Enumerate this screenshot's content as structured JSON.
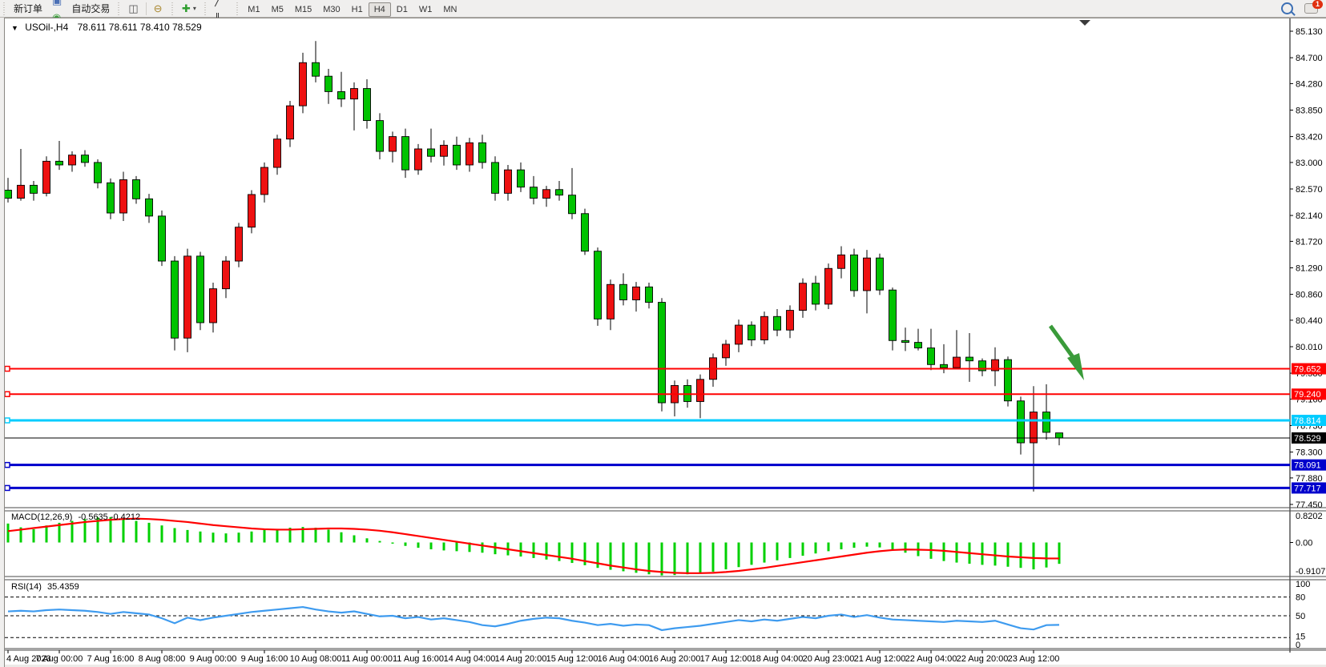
{
  "toolbar": {
    "new_order_label": "新订单",
    "autotrade_label": "自动交易",
    "icons_left": [
      {
        "name": "chart-window-icon",
        "glyph": "◆",
        "color": "#d8a31e"
      },
      {
        "name": "terminal-icon",
        "glyph": "▣",
        "color": "#4a6fb5"
      },
      {
        "name": "signals-icon",
        "glyph": "◉",
        "color": "#3f9e3f"
      },
      {
        "name": "autotrade-icon",
        "glyph": "▶",
        "color": "#cc2020"
      }
    ],
    "icons_charttype": [
      {
        "name": "bar-chart-icon",
        "glyph": "▥",
        "color": "#555"
      },
      {
        "name": "candlestick-chart-icon",
        "glyph": "◫",
        "color": "#555"
      },
      {
        "name": "line-chart-icon",
        "glyph": "∿",
        "color": "#555"
      }
    ],
    "icons_zoom": [
      {
        "name": "zoom-in-icon",
        "glyph": "⊕",
        "color": "#a8862c"
      },
      {
        "name": "zoom-out-icon",
        "glyph": "⊖",
        "color": "#a8862c"
      },
      {
        "name": "tile-windows-icon",
        "glyph": "▦",
        "color": "#3f7fbf"
      }
    ],
    "icons_profile": [
      {
        "name": "auto-arrange-icon",
        "glyph": "▤",
        "color": "#3f9e3f"
      },
      {
        "name": "chart-shift-icon",
        "glyph": "▥",
        "color": "#3f9e3f"
      },
      {
        "name": "add-indicator-icon",
        "glyph": "✚",
        "color": "#2f9e2f",
        "dropdown": true
      },
      {
        "name": "period-icon",
        "glyph": "◷",
        "color": "#4a6fb5",
        "dropdown": true
      },
      {
        "name": "template-icon",
        "glyph": "▩",
        "color": "#6b6b6b"
      }
    ],
    "icons_draw": [
      {
        "name": "cursor-icon",
        "glyph": "↖",
        "color": "#333"
      },
      {
        "name": "crosshair-icon",
        "glyph": "＋",
        "color": "#333"
      },
      {
        "name": "vertical-line-icon",
        "glyph": "│",
        "color": "#333"
      },
      {
        "name": "horizontal-line-icon",
        "glyph": "─",
        "color": "#333"
      },
      {
        "name": "trendline-icon",
        "glyph": "╱",
        "color": "#333"
      },
      {
        "name": "equidistant-channel-icon",
        "glyph": "∥",
        "color": "#333"
      },
      {
        "name": "fibonacci-icon",
        "glyph": "F",
        "color": "#333"
      },
      {
        "name": "text-icon",
        "glyph": "A",
        "color": "#333"
      },
      {
        "name": "text-label-icon",
        "glyph": "T",
        "color": "#333"
      },
      {
        "name": "shapes-icon",
        "glyph": "◆",
        "color": "#555",
        "dropdown": true
      }
    ],
    "timeframes": [
      "M1",
      "M5",
      "M15",
      "M30",
      "H1",
      "H4",
      "D1",
      "W1",
      "MN"
    ],
    "active_timeframe": "H4",
    "notification_count": "1"
  },
  "window": {
    "title_arrow": "▼",
    "symbol_title": "USOil-,H4",
    "ohlc_text": "78.611 78.611 78.410 78.529"
  },
  "chart_data": {
    "type": "candlestick",
    "symbol": "USOil-",
    "timeframe": "H4",
    "title": "USOil-,H4",
    "current_bar_ohlc": "78.611 78.611 78.410 78.529",
    "up_color": "#ee1111",
    "down_color": "#00c300",
    "candle_border": "#000000",
    "y_axis": {
      "min": 77.45,
      "max": 85.13,
      "ticks": [
        85.13,
        84.7,
        84.28,
        83.85,
        83.42,
        83.0,
        82.57,
        82.14,
        81.72,
        81.29,
        80.86,
        80.44,
        80.01,
        79.58,
        79.16,
        78.73,
        78.3,
        77.88,
        77.45
      ]
    },
    "x_labels": [
      "4 Aug 2023",
      "7 Aug 00:00",
      "7 Aug 16:00",
      "8 Aug 08:00",
      "9 Aug 00:00",
      "9 Aug 16:00",
      "10 Aug 08:00",
      "11 Aug 00:00",
      "11 Aug 16:00",
      "14 Aug 04:00",
      "14 Aug 20:00",
      "15 Aug 12:00",
      "16 Aug 04:00",
      "16 Aug 20:00",
      "17 Aug 12:00",
      "18 Aug 04:00",
      "20 Aug 23:00",
      "21 Aug 12:00",
      "22 Aug 04:00",
      "22 Aug 20:00",
      "23 Aug 12:00"
    ],
    "bars_per_label": 4,
    "candles": [
      [
        82.55,
        82.75,
        82.35,
        82.42
      ],
      [
        82.42,
        83.22,
        82.38,
        82.63
      ],
      [
        82.63,
        82.7,
        82.38,
        82.5
      ],
      [
        82.5,
        83.1,
        82.45,
        83.02
      ],
      [
        83.02,
        83.35,
        82.88,
        82.96
      ],
      [
        82.96,
        83.18,
        82.85,
        83.12
      ],
      [
        83.12,
        83.2,
        82.93,
        83.0
      ],
      [
        83.0,
        83.05,
        82.58,
        82.67
      ],
      [
        82.67,
        82.74,
        82.08,
        82.18
      ],
      [
        82.18,
        82.85,
        82.05,
        82.72
      ],
      [
        82.72,
        82.78,
        82.33,
        82.41
      ],
      [
        82.41,
        82.49,
        82.02,
        82.13
      ],
      [
        82.13,
        82.22,
        81.32,
        81.4
      ],
      [
        81.4,
        81.48,
        79.95,
        80.15
      ],
      [
        80.15,
        81.6,
        79.92,
        81.48
      ],
      [
        81.48,
        81.55,
        80.28,
        80.4
      ],
      [
        80.4,
        81.05,
        80.24,
        80.95
      ],
      [
        80.95,
        81.48,
        80.8,
        81.4
      ],
      [
        81.4,
        82.02,
        81.3,
        81.95
      ],
      [
        81.95,
        82.55,
        81.85,
        82.48
      ],
      [
        82.48,
        83.0,
        82.35,
        82.92
      ],
      [
        82.92,
        83.45,
        82.8,
        83.38
      ],
      [
        83.38,
        84.0,
        83.25,
        83.92
      ],
      [
        83.92,
        84.78,
        83.8,
        84.62
      ],
      [
        84.62,
        84.97,
        84.3,
        84.4
      ],
      [
        84.4,
        84.52,
        83.95,
        84.15
      ],
      [
        84.15,
        84.47,
        83.9,
        84.03
      ],
      [
        84.03,
        84.3,
        83.52,
        84.2
      ],
      [
        84.2,
        84.35,
        83.55,
        83.68
      ],
      [
        83.68,
        83.8,
        83.05,
        83.18
      ],
      [
        83.18,
        83.5,
        83.0,
        83.42
      ],
      [
        83.42,
        83.55,
        82.75,
        82.88
      ],
      [
        82.88,
        83.3,
        82.8,
        83.22
      ],
      [
        83.22,
        83.55,
        83.0,
        83.1
      ],
      [
        83.1,
        83.36,
        82.95,
        83.28
      ],
      [
        83.28,
        83.42,
        82.88,
        82.96
      ],
      [
        82.96,
        83.4,
        82.85,
        83.32
      ],
      [
        83.32,
        83.45,
        82.9,
        83.0
      ],
      [
        83.0,
        83.1,
        82.38,
        82.5
      ],
      [
        82.5,
        82.96,
        82.38,
        82.88
      ],
      [
        82.88,
        83.0,
        82.52,
        82.6
      ],
      [
        82.6,
        82.78,
        82.32,
        82.42
      ],
      [
        82.42,
        82.62,
        82.28,
        82.56
      ],
      [
        82.56,
        82.7,
        82.38,
        82.47
      ],
      [
        82.47,
        82.91,
        82.08,
        82.17
      ],
      [
        82.17,
        82.25,
        81.5,
        81.56
      ],
      [
        81.56,
        81.62,
        80.35,
        80.46
      ],
      [
        80.46,
        81.1,
        80.28,
        81.02
      ],
      [
        81.02,
        81.2,
        80.68,
        80.77
      ],
      [
        80.77,
        81.06,
        80.58,
        80.98
      ],
      [
        80.98,
        81.05,
        80.63,
        80.73
      ],
      [
        80.73,
        80.8,
        78.96,
        79.1
      ],
      [
        79.1,
        79.46,
        78.88,
        79.38
      ],
      [
        79.38,
        79.48,
        79.02,
        79.12
      ],
      [
        79.12,
        79.56,
        78.85,
        79.48
      ],
      [
        79.48,
        79.9,
        79.36,
        79.83
      ],
      [
        79.83,
        80.12,
        79.7,
        80.05
      ],
      [
        80.05,
        80.45,
        79.92,
        80.36
      ],
      [
        80.36,
        80.42,
        80.02,
        80.12
      ],
      [
        80.12,
        80.58,
        80.05,
        80.5
      ],
      [
        80.5,
        80.62,
        80.18,
        80.28
      ],
      [
        80.28,
        80.68,
        80.15,
        80.6
      ],
      [
        80.6,
        81.12,
        80.48,
        81.04
      ],
      [
        81.04,
        81.16,
        80.6,
        80.7
      ],
      [
        80.7,
        81.36,
        80.62,
        81.28
      ],
      [
        81.28,
        81.64,
        81.12,
        81.5
      ],
      [
        81.5,
        81.6,
        80.82,
        80.92
      ],
      [
        80.92,
        81.58,
        80.55,
        81.45
      ],
      [
        81.45,
        81.52,
        80.85,
        80.93
      ],
      [
        80.93,
        80.97,
        79.95,
        80.11
      ],
      [
        80.11,
        80.32,
        79.94,
        80.08
      ],
      [
        80.08,
        80.3,
        79.95,
        79.99
      ],
      [
        79.99,
        80.3,
        79.63,
        79.72
      ],
      [
        79.72,
        80.05,
        79.58,
        79.67
      ],
      [
        79.67,
        80.28,
        79.64,
        79.84
      ],
      [
        79.84,
        80.23,
        79.44,
        79.78
      ],
      [
        79.78,
        79.82,
        79.53,
        79.62
      ],
      [
        79.62,
        80.0,
        79.37,
        79.8
      ],
      [
        79.8,
        79.85,
        79.04,
        79.13
      ],
      [
        79.13,
        79.2,
        78.26,
        78.45
      ],
      [
        78.45,
        79.37,
        77.66,
        78.95
      ],
      [
        78.95,
        79.4,
        78.5,
        78.62
      ],
      [
        78.611,
        78.611,
        78.41,
        78.529
      ]
    ],
    "hlines": [
      {
        "price": 79.652,
        "label": "79.652",
        "color": "#ff0000",
        "width": 2
      },
      {
        "price": 79.24,
        "label": "79.240",
        "color": "#ff0000",
        "width": 2
      },
      {
        "price": 78.814,
        "label": "78.814",
        "color": "#00ccff",
        "width": 3
      },
      {
        "price": 78.529,
        "label": "78.529",
        "color": "#000000",
        "width": 1,
        "role": "bid"
      },
      {
        "price": 78.091,
        "label": "78.091",
        "color": "#0000cc",
        "width": 3
      },
      {
        "price": 77.717,
        "label": "77.717",
        "color": "#0000cc",
        "width": 3
      }
    ],
    "annotation_arrow": {
      "color": "#3a9b3a"
    },
    "indicators": {
      "macd": {
        "label": "MACD(12,26,9)",
        "value_text": "-0.5635 -0.4212",
        "scale": {
          "top": "0.8202",
          "zero": "0.00",
          "bottom": "-0.9107"
        },
        "histogram_color": "#00d000",
        "signal_color": "#ff0000",
        "histogram": [
          0.5,
          0.4,
          0.35,
          0.45,
          0.52,
          0.57,
          0.62,
          0.66,
          0.67,
          0.63,
          0.57,
          0.52,
          0.45,
          0.38,
          0.33,
          0.29,
          0.26,
          0.24,
          0.26,
          0.29,
          0.33,
          0.36,
          0.39,
          0.41,
          0.39,
          0.34,
          0.27,
          0.19,
          0.11,
          0.04,
          -0.03,
          -0.09,
          -0.14,
          -0.18,
          -0.21,
          -0.23,
          -0.25,
          -0.27,
          -0.31,
          -0.34,
          -0.37,
          -0.41,
          -0.45,
          -0.49,
          -0.54,
          -0.6,
          -0.67,
          -0.72,
          -0.76,
          -0.8,
          -0.84,
          -0.87,
          -0.86,
          -0.84,
          -0.81,
          -0.77,
          -0.71,
          -0.65,
          -0.59,
          -0.53,
          -0.47,
          -0.41,
          -0.35,
          -0.29,
          -0.23,
          -0.18,
          -0.14,
          -0.11,
          -0.13,
          -0.19,
          -0.27,
          -0.36,
          -0.43,
          -0.49,
          -0.53,
          -0.56,
          -0.59,
          -0.61,
          -0.64,
          -0.67,
          -0.71,
          -0.66,
          -0.5635
        ],
        "signal": [
          0.3,
          0.34,
          0.38,
          0.42,
          0.46,
          0.5,
          0.54,
          0.57,
          0.6,
          0.62,
          0.63,
          0.62,
          0.6,
          0.57,
          0.54,
          0.5,
          0.46,
          0.43,
          0.4,
          0.37,
          0.35,
          0.34,
          0.34,
          0.35,
          0.36,
          0.37,
          0.37,
          0.36,
          0.34,
          0.31,
          0.27,
          0.22,
          0.17,
          0.12,
          0.07,
          0.02,
          -0.03,
          -0.08,
          -0.13,
          -0.18,
          -0.23,
          -0.28,
          -0.33,
          -0.38,
          -0.43,
          -0.49,
          -0.55,
          -0.61,
          -0.66,
          -0.71,
          -0.75,
          -0.78,
          -0.8,
          -0.81,
          -0.81,
          -0.8,
          -0.78,
          -0.75,
          -0.71,
          -0.67,
          -0.62,
          -0.57,
          -0.52,
          -0.47,
          -0.42,
          -0.37,
          -0.32,
          -0.27,
          -0.23,
          -0.2,
          -0.185,
          -0.19,
          -0.2,
          -0.22,
          -0.25,
          -0.28,
          -0.31,
          -0.34,
          -0.37,
          -0.39,
          -0.41,
          -0.42,
          -0.4212
        ]
      },
      "rsi": {
        "label": "RSI(14)",
        "value_text": "35.4359",
        "line_color": "#3e9bef",
        "scale_labels": [
          "100",
          "80",
          "50",
          "15",
          "0"
        ],
        "levels": [
          80,
          50,
          15
        ],
        "series": [
          57,
          58,
          57,
          59,
          60,
          59,
          58,
          56,
          53,
          56,
          54,
          52,
          46,
          38,
          47,
          43,
          47,
          50,
          53,
          56,
          58,
          60,
          62,
          64,
          60,
          57,
          55,
          57,
          53,
          49,
          50,
          46,
          48,
          44,
          46,
          43,
          40,
          35,
          33,
          37,
          42,
          45,
          47,
          46,
          42,
          39,
          35,
          37,
          34,
          36,
          35,
          27,
          30,
          32,
          34,
          37,
          40,
          43,
          41,
          44,
          42,
          45,
          48,
          46,
          50,
          52,
          48,
          51,
          47,
          44,
          43,
          42,
          41,
          40,
          42,
          41,
          40,
          42,
          36,
          30,
          28,
          35,
          35.4
        ]
      }
    }
  }
}
